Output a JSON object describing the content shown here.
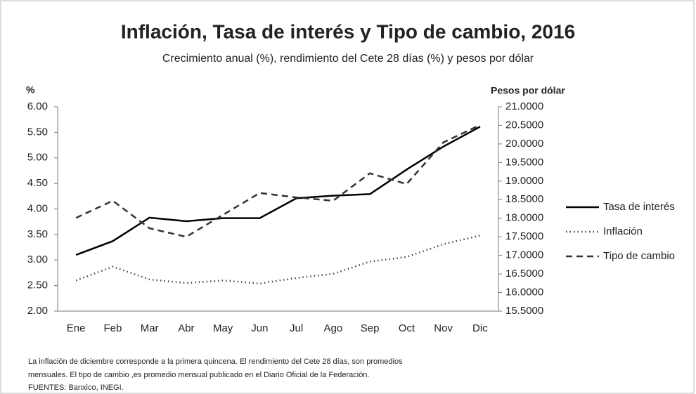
{
  "chart_data": {
    "type": "line",
    "title": "Inflación, Tasa de interés y Tipo de cambio, 2016",
    "subtitle": "Crecimiento anual (%), rendimiento del Cete 28 días (%) y pesos por dólar",
    "y_label": "%",
    "y2_label": "Pesos por dólar",
    "categories": [
      "Ene",
      "Feb",
      "Mar",
      "Abr",
      "May",
      "Jun",
      "Jul",
      "Ago",
      "Sep",
      "Oct",
      "Nov",
      "Dic"
    ],
    "series": [
      {
        "name": "Tasa de interés",
        "color": "#000000",
        "dash": "solid",
        "values": [
          3.1,
          3.37,
          3.83,
          3.76,
          3.82,
          3.82,
          4.21,
          4.26,
          4.29,
          4.77,
          5.22,
          5.61
        ]
      },
      {
        "name": "Inflación",
        "color": "#444444",
        "dash": "dotted",
        "values": [
          2.6,
          2.87,
          2.62,
          2.55,
          2.6,
          2.54,
          2.65,
          2.73,
          2.97,
          3.06,
          3.31,
          3.48
        ]
      },
      {
        "name": "Tipo de cambio",
        "color": "#333333",
        "dash": "dashed",
        "axis": "y2",
        "values": [
          18.01,
          18.47,
          17.73,
          17.5,
          18.09,
          18.68,
          18.56,
          18.47,
          19.21,
          18.92,
          20.04,
          20.51
        ]
      }
    ],
    "ylim": [
      2,
      6
    ],
    "yticks": [
      {
        "value": 2,
        "label": "2.00"
      },
      {
        "value": 2.5,
        "label": "2.50"
      },
      {
        "value": 3,
        "label": "3.00"
      },
      {
        "value": 3.5,
        "label": "3.50"
      },
      {
        "value": 4,
        "label": "4.00"
      },
      {
        "value": 4.5,
        "label": "4.50"
      },
      {
        "value": 5,
        "label": "5.00"
      },
      {
        "value": 5.5,
        "label": "5.50"
      },
      {
        "value": 6,
        "label": "6.00"
      }
    ],
    "y2lim": [
      15.5,
      21
    ],
    "y2ticks": [
      {
        "value": 15.5,
        "label": "15.5000"
      },
      {
        "value": 16,
        "label": "16.0000"
      },
      {
        "value": 16.5,
        "label": "16.5000"
      },
      {
        "value": 17,
        "label": "17.0000"
      },
      {
        "value": 17.5,
        "label": "17.5000"
      },
      {
        "value": 18,
        "label": "18.0000"
      },
      {
        "value": 18.5,
        "label": "18.5000"
      },
      {
        "value": 19,
        "label": "19.0000"
      },
      {
        "value": 19.5,
        "label": "19.5000"
      },
      {
        "value": 20,
        "label": "20.0000"
      },
      {
        "value": 20.5,
        "label": "20.5000"
      },
      {
        "value": 21,
        "label": "21.0000"
      }
    ],
    "grid": false,
    "legend": "right",
    "notes": [
      "La inflación de diciembre corresponde a la primera quincena. El rendimiento del Cete 28 días, son promedios",
      "mensuales. El tipo de cambio ,es promedio mensual publicado en el Diario Oficial de la Federación.",
      "FUENTES: Banxico, INEGI."
    ]
  }
}
